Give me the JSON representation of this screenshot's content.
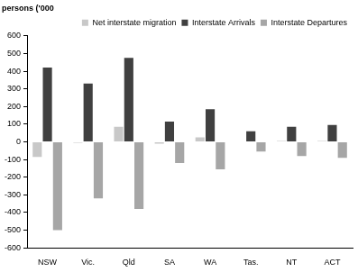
{
  "chart_data": {
    "type": "bar",
    "y_label": "persons ('000",
    "categories": [
      "NSW",
      "Vic.",
      "Qld",
      "SA",
      "WA",
      "Tas.",
      "NT",
      "ACT"
    ],
    "series": [
      {
        "name": "Net interstate migration",
        "color": "#c8c8c8",
        "values": [
          -85,
          -5,
          85,
          -10,
          25,
          3,
          5,
          5
        ]
      },
      {
        "name": "Interstate Arrivals",
        "color": "#404040",
        "values": [
          420,
          330,
          475,
          115,
          185,
          60,
          85,
          95
        ]
      },
      {
        "name": "Interstate Departures",
        "color": "#a6a6a6",
        "values": [
          -500,
          -320,
          -380,
          -120,
          -155,
          -55,
          -80,
          -90
        ]
      }
    ],
    "ylim": [
      -600,
      600
    ],
    "yticks": [
      -600,
      -500,
      -400,
      -300,
      -200,
      -100,
      0,
      100,
      200,
      300,
      400,
      500,
      600
    ],
    "grid": false,
    "legend": "top-right"
  }
}
